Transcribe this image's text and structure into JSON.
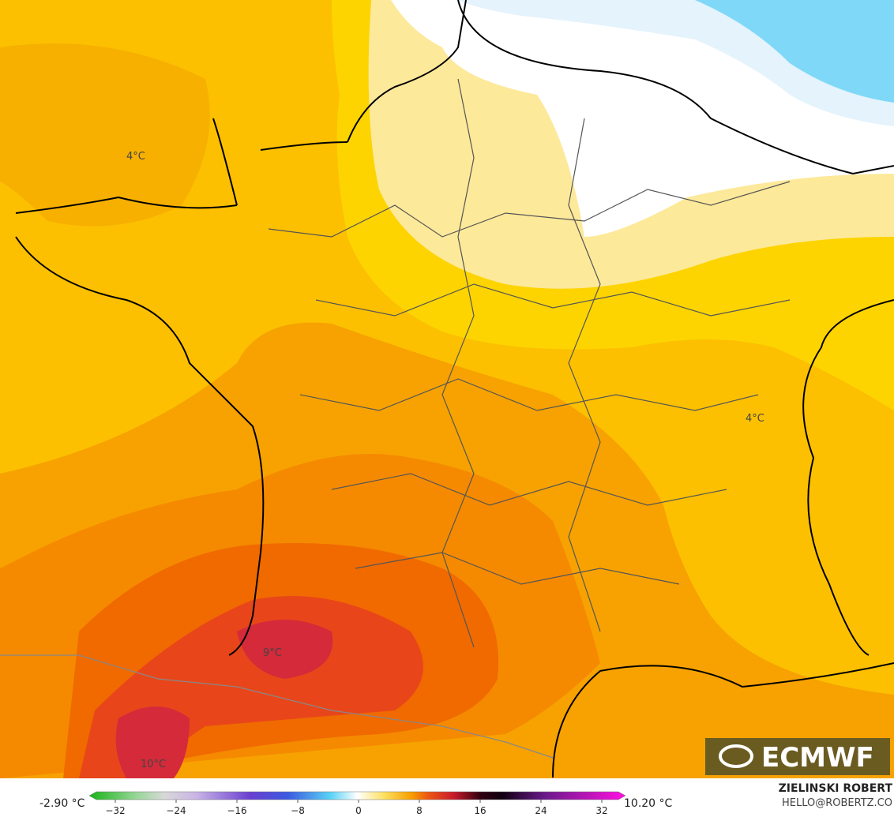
{
  "map": {
    "contour_labels": [
      "4°C",
      "4°C",
      "9°C",
      "10°C"
    ]
  },
  "logo": {
    "text": "ECMWF"
  },
  "colorbar": {
    "min_label": "-2.90 °C",
    "max_label": "10.20 °C",
    "range": [
      -32,
      32
    ],
    "ticks": [
      {
        "value": -32,
        "label": "−32"
      },
      {
        "value": -24,
        "label": "−24"
      },
      {
        "value": -16,
        "label": "−16"
      },
      {
        "value": -8,
        "label": "−8"
      },
      0,
      8,
      16,
      24,
      32
    ]
  },
  "credit": {
    "author": "ZIELINSKI ROBERT",
    "contact": "HELLO@ROBERTZ.CO"
  }
}
